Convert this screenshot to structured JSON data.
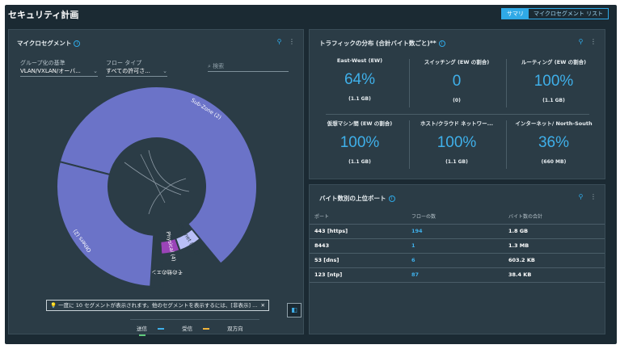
{
  "page": {
    "title": "セキュリティ計画"
  },
  "view_toggle": {
    "summary": "サマリ",
    "list": "マイクロセグメント リスト"
  },
  "micro": {
    "title": "マイクロセグメント",
    "group_label": "グループ化の基準",
    "group_value": "VLAN/VXLAN/オーバ...",
    "flow_label": "フロー タイプ",
    "flow_value": "すべての許可さ...",
    "search_placeholder": "検索",
    "segments": [
      {
        "label": "Sub-Zone (2)",
        "share": 0.6,
        "color": "#6b73c8"
      },
      {
        "label": "Internet (255)",
        "share": 0.055,
        "color": "#b9bff7"
      },
      {
        "label": "Physical (4)",
        "share": 0.045,
        "color": "#9a44b8"
      },
      {
        "label": "その他のエンティティ",
        "share": 0.02,
        "color": "#2b3c46"
      },
      {
        "label": "Others (2)",
        "share": 0.28,
        "color": "#6b73c8"
      }
    ],
    "note": "一度に 10 セグメントが表示されます。他のセグメントを表示するには、[非表示] ...",
    "legend": {
      "send": "送信",
      "receive": "受信",
      "both": "双方向"
    },
    "colors": {
      "send": "#3fb0ea",
      "receive": "#f0b43a",
      "both": "#5fc97b"
    }
  },
  "traffic": {
    "title": "トラフィックの分布 (合計バイト数ごと)**",
    "metrics": [
      {
        "title": "East-West (EW)",
        "value": "64%",
        "sub": "(1.1 GB)"
      },
      {
        "title": "スイッチング (EW の割合)",
        "value": "0",
        "sub": "(0)"
      },
      {
        "title": "ルーティング (EW の割合)",
        "value": "100%",
        "sub": "(1.1 GB)"
      },
      {
        "title": "仮想マシン間 (EW の割合)",
        "value": "100%",
        "sub": "(1.1 GB)"
      },
      {
        "title": "ホスト/クラウド ネットワー...",
        "value": "100%",
        "sub": "(1.1 GB)"
      },
      {
        "title": "インターネット/ North-South",
        "value": "36%",
        "sub": "(660 MB)"
      }
    ]
  },
  "ports": {
    "title": "バイト数別の上位ポート",
    "headers": [
      "ポート",
      "フローの数",
      "バイト数の合計"
    ],
    "rows": [
      [
        "443 [https]",
        "194",
        "1.8 GB"
      ],
      [
        "8443",
        "1",
        "1.3 MB"
      ],
      [
        "53 [dns]",
        "6",
        "603.2 KB"
      ],
      [
        "123 [ntp]",
        "87",
        "38.4 KB"
      ]
    ]
  },
  "icons": {
    "pin": "pin-icon",
    "more": "more-vertical-icon",
    "info": "info-icon",
    "search": "search-icon",
    "bulb": "bulb-icon",
    "close": "close-icon",
    "panel": "side-panel-icon"
  }
}
